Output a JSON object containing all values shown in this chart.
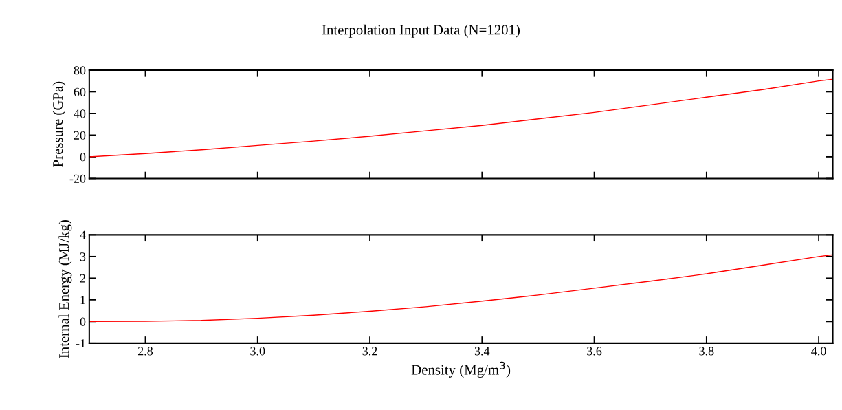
{
  "chart_data": [
    {
      "type": "line",
      "title": "Interpolation Input Data (N=1201)",
      "ylabel": "Pressure (GPa)",
      "xlim": [
        2.7,
        4.025
      ],
      "xticks": [
        {
          "value": 2.8,
          "label": null
        },
        {
          "value": 3.0,
          "label": null
        },
        {
          "value": 3.2,
          "label": null
        },
        {
          "value": 3.4,
          "label": null
        },
        {
          "value": 3.6,
          "label": null
        },
        {
          "value": 3.8,
          "label": null
        },
        {
          "value": 4.0,
          "label": null
        }
      ],
      "ylim": [
        -20,
        80
      ],
      "yticks": [
        -20,
        0,
        20,
        40,
        60,
        80
      ],
      "tick_labels": "y",
      "grid": false,
      "legend": false,
      "series": [
        {
          "color": "#ff0000",
          "x": [
            2.7,
            2.8,
            2.9,
            3.0,
            3.1,
            3.2,
            3.3,
            3.4,
            3.5,
            3.6,
            3.7,
            3.8,
            3.9,
            4.0,
            4.025
          ],
          "values": [
            0,
            3,
            6.5,
            10.5,
            14.5,
            19,
            24,
            29,
            35,
            41,
            48,
            55,
            62,
            70,
            71.5
          ]
        }
      ]
    },
    {
      "type": "line",
      "xlabel": "Density (Mg/m$^{3}$)",
      "ylabel": "Internal Energy (MJ/kg)",
      "xlim": [
        2.7,
        4.025
      ],
      "xticks": [
        {
          "value": 2.8,
          "label": "2.8"
        },
        {
          "value": 3.0,
          "label": "3.0"
        },
        {
          "value": 3.2,
          "label": "3.2"
        },
        {
          "value": 3.4,
          "label": "3.4"
        },
        {
          "value": 3.6,
          "label": "3.6"
        },
        {
          "value": 3.8,
          "label": "3.8"
        },
        {
          "value": 4.0,
          "label": "4.0"
        }
      ],
      "ylim": [
        -1,
        4
      ],
      "yticks": [
        -1,
        0,
        1,
        2,
        3,
        4
      ],
      "grid": false,
      "legend": false,
      "series": [
        {
          "color": "#ff0000",
          "x": [
            2.7,
            2.8,
            2.9,
            3.0,
            3.1,
            3.2,
            3.3,
            3.4,
            3.5,
            3.6,
            3.7,
            3.8,
            3.9,
            4.0,
            4.025
          ],
          "values": [
            0,
            0.01,
            0.05,
            0.15,
            0.29,
            0.47,
            0.68,
            0.94,
            1.22,
            1.54,
            1.86,
            2.2,
            2.6,
            3.0,
            3.08
          ]
        }
      ]
    }
  ]
}
